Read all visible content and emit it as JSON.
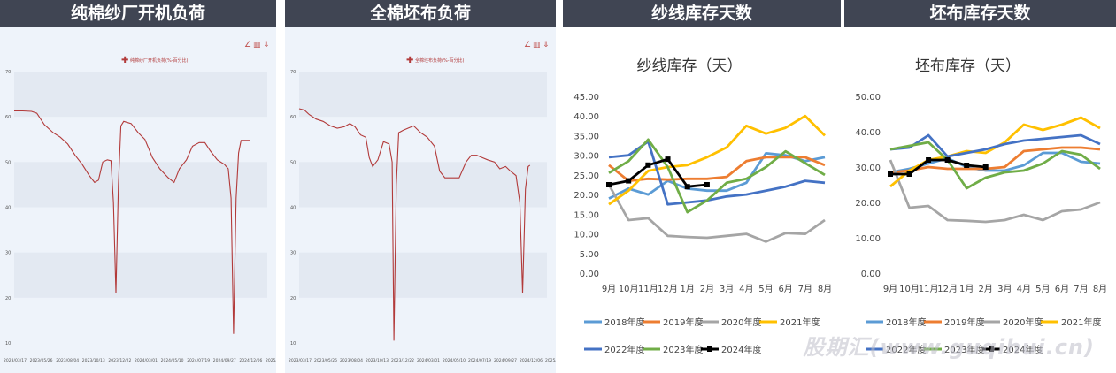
{
  "panels": [
    {
      "header": "纯棉纱厂开机负荷",
      "legend": "纯棉纱厂开机负荷(%-百分比)",
      "y_ticks": [
        "70",
        "60",
        "50",
        "40",
        "30",
        "20",
        "10"
      ],
      "x_ticks": [
        "2023/03/17",
        "2023/05/26",
        "2023/08/04",
        "2023/10/13",
        "2023/12/22",
        "2024/03/01",
        "2024/05/10",
        "2024/07/19",
        "2024/09/27",
        "2024/12/06",
        "2025/02/14"
      ]
    },
    {
      "header": "全棉坯布负荷",
      "legend": "全棉坯布负荷(%-百分比)",
      "y_ticks": [
        "70",
        "60",
        "50",
        "40",
        "30",
        "20",
        "10"
      ],
      "x_ticks": [
        "2023/03/17",
        "2023/05/26",
        "2023/08/04",
        "2023/10/13",
        "2023/12/22",
        "2024/03/01",
        "2024/05/10",
        "2024/07/19",
        "2024/09/27",
        "2024/12/06",
        "2025/02/21"
      ]
    },
    {
      "header": "纱线库存天数"
    },
    {
      "header": "坯布库存天数"
    }
  ],
  "watermark": "股期汇(www.guqihui.cn)",
  "chart_data": [
    {
      "type": "line",
      "title": "",
      "ylim": [
        10,
        70
      ],
      "x_range": [
        "2023/03/17",
        "2025/02/28"
      ],
      "series": [
        {
          "name": "纯棉纱厂开机负荷(%-百分比)",
          "color": "#b23a3a",
          "points": [
            [
              "2023/03/17",
              61.3
            ],
            [
              "2023/04/10",
              61.3
            ],
            [
              "2023/05/05",
              61.2
            ],
            [
              "2023/05/20",
              60.8
            ],
            [
              "2023/06/10",
              58.3
            ],
            [
              "2023/07/05",
              56.5
            ],
            [
              "2023/07/25",
              55.5
            ],
            [
              "2023/08/15",
              54.0
            ],
            [
              "2023/09/05",
              51.5
            ],
            [
              "2023/09/25",
              49.5
            ],
            [
              "2023/10/15",
              47.0
            ],
            [
              "2023/10/30",
              45.5
            ],
            [
              "2023/11/10",
              46.0
            ],
            [
              "2023/11/22",
              50.0
            ],
            [
              "2023/12/05",
              50.5
            ],
            [
              "2023/12/15",
              50.3
            ],
            [
              "2023/12/22",
              41.0
            ],
            [
              "2023/12/29",
              21.0
            ],
            [
              "2024/01/05",
              45.0
            ],
            [
              "2024/01/12",
              58.0
            ],
            [
              "2024/01/20",
              59.0
            ],
            [
              "2024/02/10",
              58.5
            ],
            [
              "2024/03/01",
              56.5
            ],
            [
              "2024/03/20",
              55.0
            ],
            [
              "2024/04/10",
              51.0
            ],
            [
              "2024/05/01",
              48.5
            ],
            [
              "2024/05/25",
              46.5
            ],
            [
              "2024/06/10",
              45.5
            ],
            [
              "2024/06/25",
              48.5
            ],
            [
              "2024/07/15",
              50.5
            ],
            [
              "2024/08/01",
              53.5
            ],
            [
              "2024/08/20",
              54.3
            ],
            [
              "2024/09/05",
              54.3
            ],
            [
              "2024/09/20",
              52.5
            ],
            [
              "2024/10/10",
              50.5
            ],
            [
              "2024/10/30",
              49.5
            ],
            [
              "2024/11/10",
              48.5
            ],
            [
              "2024/11/18",
              42.0
            ],
            [
              "2024/11/25",
              12.0
            ],
            [
              "2024/12/02",
              42.0
            ],
            [
              "2024/12/09",
              52.0
            ],
            [
              "2024/12/16",
              54.8
            ],
            [
              "2025/01/10",
              54.8
            ]
          ]
        }
      ]
    },
    {
      "type": "line",
      "title": "",
      "ylim": [
        10,
        70
      ],
      "x_range": [
        "2023/03/17",
        "2025/02/28"
      ],
      "series": [
        {
          "name": "全棉坯布负荷(%-百分比)",
          "color": "#b23a3a",
          "points": [
            [
              "2023/03/17",
              61.8
            ],
            [
              "2023/04/01",
              61.5
            ],
            [
              "2023/04/15",
              60.5
            ],
            [
              "2023/05/05",
              59.5
            ],
            [
              "2023/05/25",
              59.0
            ],
            [
              "2023/06/15",
              58.0
            ],
            [
              "2023/07/05",
              57.5
            ],
            [
              "2023/07/25",
              57.8
            ],
            [
              "2023/08/10",
              58.5
            ],
            [
              "2023/08/25",
              57.8
            ],
            [
              "2023/09/10",
              56.0
            ],
            [
              "2023/09/25",
              55.5
            ],
            [
              "2023/10/05",
              51.0
            ],
            [
              "2023/10/15",
              49.0
            ],
            [
              "2023/10/30",
              50.5
            ],
            [
              "2023/11/15",
              54.5
            ],
            [
              "2023/12/01",
              54.0
            ],
            [
              "2023/12/10",
              50.0
            ],
            [
              "2023/12/15",
              10.5
            ],
            [
              "2023/12/22",
              45.0
            ],
            [
              "2023/12/29",
              56.5
            ],
            [
              "2024/01/10",
              57.0
            ],
            [
              "2024/01/25",
              57.5
            ],
            [
              "2024/02/10",
              58.0
            ],
            [
              "2024/03/01",
              56.5
            ],
            [
              "2024/03/20",
              55.5
            ],
            [
              "2024/04/10",
              53.5
            ],
            [
              "2024/04/25",
              48.0
            ],
            [
              "2024/05/10",
              46.5
            ],
            [
              "2024/05/30",
              46.5
            ],
            [
              "2024/06/20",
              46.5
            ],
            [
              "2024/07/10",
              50.0
            ],
            [
              "2024/07/25",
              51.5
            ],
            [
              "2024/08/10",
              51.5
            ],
            [
              "2024/08/25",
              51.0
            ],
            [
              "2024/09/10",
              50.5
            ],
            [
              "2024/09/30",
              50.0
            ],
            [
              "2024/10/15",
              48.5
            ],
            [
              "2024/11/01",
              49.0
            ],
            [
              "2024/11/15",
              48.0
            ],
            [
              "2024/12/01",
              47.0
            ],
            [
              "2024/12/12",
              41.0
            ],
            [
              "2024/12/20",
              21.0
            ],
            [
              "2024/12/28",
              44.0
            ],
            [
              "2025/01/05",
              49.0
            ],
            [
              "2025/01/10",
              49.3
            ]
          ]
        }
      ]
    },
    {
      "type": "line",
      "title": "纱线库存（天）",
      "categories": [
        "9月",
        "10月",
        "11月",
        "12月",
        "1月",
        "2月",
        "3月",
        "4月",
        "5月",
        "6月",
        "7月",
        "8月"
      ],
      "ylim": [
        0,
        45
      ],
      "ytick_step": 5,
      "legend_position": "bottom",
      "series": [
        {
          "name": "2018年度",
          "color": "#5b9bd5",
          "values": [
            19.0,
            21.5,
            20.0,
            23.5,
            21.5,
            21.0,
            21.0,
            23.0,
            30.5,
            30.0,
            28.5,
            29.5
          ]
        },
        {
          "name": "2019年度",
          "color": "#ed7d31",
          "values": [
            27.5,
            23.5,
            24.0,
            23.8,
            24.0,
            24.0,
            24.5,
            28.5,
            29.5,
            29.5,
            29.5,
            27.5
          ]
        },
        {
          "name": "2020年度",
          "color": "#a5a5a5",
          "values": [
            22.5,
            13.5,
            14.0,
            9.5,
            9.2,
            9.0,
            9.5,
            10.0,
            8.0,
            10.2,
            10.0,
            13.5
          ]
        },
        {
          "name": "2021年度",
          "color": "#ffc000",
          "values": [
            17.5,
            21.0,
            26.0,
            27.0,
            27.5,
            29.5,
            32.0,
            37.5,
            35.5,
            37.0,
            40.0,
            35.0
          ]
        },
        {
          "name": "2022年度",
          "color": "#4472c4",
          "values": [
            29.5,
            30.0,
            33.5,
            17.5,
            18.0,
            18.5,
            19.5,
            20.0,
            21.0,
            22.0,
            23.5,
            23.0
          ]
        },
        {
          "name": "2023年度",
          "color": "#70ad47",
          "values": [
            25.5,
            28.5,
            34.0,
            27.0,
            15.5,
            18.5,
            23.0,
            24.0,
            27.0,
            31.0,
            28.0,
            25.0
          ]
        },
        {
          "name": "2024年度",
          "color": "#000000",
          "marker": true,
          "values": [
            22.5,
            23.5,
            27.5,
            29.0,
            22.0,
            22.5,
            null,
            null,
            null,
            null,
            null,
            null
          ]
        }
      ]
    },
    {
      "type": "line",
      "title": "坯布库存（天）",
      "categories": [
        "9月",
        "10月",
        "11月",
        "12月",
        "1月",
        "2月",
        "3月",
        "4月",
        "5月",
        "6月",
        "7月",
        "8月"
      ],
      "ylim": [
        0,
        50
      ],
      "ytick_step": 10,
      "legend_position": "bottom",
      "series": [
        {
          "name": "2018年度",
          "color": "#5b9bd5",
          "values": [
            28.5,
            29.5,
            31.0,
            32.5,
            30.0,
            29.0,
            29.0,
            30.5,
            34.0,
            34.0,
            31.5,
            31.0
          ]
        },
        {
          "name": "2019年度",
          "color": "#ed7d31",
          "values": [
            28.5,
            29.0,
            30.0,
            29.5,
            29.5,
            29.5,
            30.0,
            34.5,
            35.0,
            35.5,
            35.5,
            35.0
          ]
        },
        {
          "name": "2020年度",
          "color": "#a5a5a5",
          "values": [
            32.0,
            18.5,
            19.0,
            15.0,
            14.8,
            14.5,
            15.0,
            16.5,
            15.0,
            17.5,
            18.0,
            20.0
          ]
        },
        {
          "name": "2021年度",
          "color": "#ffc000",
          "values": [
            24.5,
            29.0,
            32.0,
            33.0,
            34.5,
            34.0,
            37.0,
            42.0,
            40.5,
            42.0,
            44.0,
            41.0
          ]
        },
        {
          "name": "2022年度",
          "color": "#4472c4",
          "values": [
            35.0,
            35.5,
            39.0,
            33.0,
            34.0,
            35.0,
            36.5,
            37.5,
            38.0,
            38.5,
            39.0,
            36.5
          ]
        },
        {
          "name": "2023年度",
          "color": "#70ad47",
          "values": [
            35.0,
            36.0,
            37.0,
            32.0,
            24.0,
            27.0,
            28.5,
            29.0,
            31.0,
            34.5,
            33.5,
            29.5
          ]
        },
        {
          "name": "2024年度",
          "color": "#000000",
          "marker": true,
          "values": [
            28.0,
            28.0,
            32.0,
            32.0,
            30.5,
            30.0,
            null,
            null,
            null,
            null,
            null,
            null
          ]
        }
      ]
    }
  ]
}
